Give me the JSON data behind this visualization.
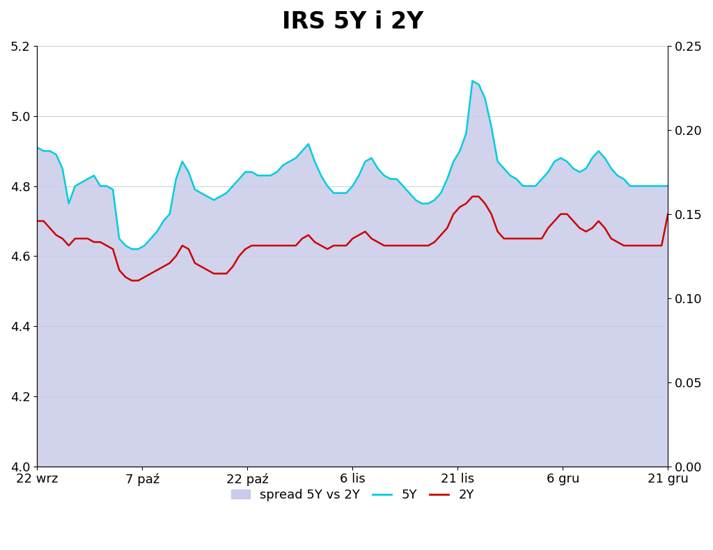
{
  "title": "IRS 5Y i 2Y",
  "title_fontsize": 24,
  "title_fontweight": "bold",
  "x_labels": [
    "22 wrz",
    "7 paź",
    "22 paź",
    "6 lis",
    "21 lis",
    "6 gru",
    "21 gru"
  ],
  "ylim_left": [
    4.0,
    5.2
  ],
  "ylim_right": [
    0.0,
    0.25
  ],
  "yticks_left": [
    4.0,
    4.2,
    4.4,
    4.6,
    4.8,
    5.0,
    5.2
  ],
  "yticks_right": [
    0.0,
    0.05,
    0.1,
    0.15,
    0.2,
    0.25
  ],
  "line5Y": [
    4.91,
    4.9,
    4.9,
    4.89,
    4.85,
    4.75,
    4.8,
    4.81,
    4.82,
    4.83,
    4.8,
    4.8,
    4.79,
    4.65,
    4.63,
    4.62,
    4.62,
    4.63,
    4.65,
    4.67,
    4.7,
    4.72,
    4.82,
    4.87,
    4.84,
    4.79,
    4.78,
    4.77,
    4.76,
    4.77,
    4.78,
    4.8,
    4.82,
    4.84,
    4.84,
    4.83,
    4.83,
    4.83,
    4.84,
    4.86,
    4.87,
    4.88,
    4.9,
    4.92,
    4.87,
    4.83,
    4.8,
    4.78,
    4.78,
    4.78,
    4.8,
    4.83,
    4.87,
    4.88,
    4.85,
    4.83,
    4.82,
    4.82,
    4.8,
    4.78,
    4.76,
    4.75,
    4.75,
    4.76,
    4.78,
    4.82,
    4.87,
    4.9,
    4.95,
    5.1,
    5.09,
    5.05,
    4.97,
    4.87,
    4.85,
    4.83,
    4.82,
    4.8,
    4.8,
    4.8,
    4.82,
    4.84,
    4.87,
    4.88,
    4.87,
    4.85,
    4.84,
    4.85,
    4.88,
    4.9,
    4.88,
    4.85,
    4.83,
    4.82,
    4.8,
    4.8,
    4.8,
    4.8,
    4.8,
    4.8,
    4.8
  ],
  "line2Y": [
    4.7,
    4.7,
    4.68,
    4.66,
    4.65,
    4.63,
    4.65,
    4.65,
    4.65,
    4.64,
    4.64,
    4.63,
    4.62,
    4.56,
    4.54,
    4.53,
    4.53,
    4.54,
    4.55,
    4.56,
    4.57,
    4.58,
    4.6,
    4.63,
    4.62,
    4.58,
    4.57,
    4.56,
    4.55,
    4.55,
    4.55,
    4.57,
    4.6,
    4.62,
    4.63,
    4.63,
    4.63,
    4.63,
    4.63,
    4.63,
    4.63,
    4.63,
    4.65,
    4.66,
    4.64,
    4.63,
    4.62,
    4.63,
    4.63,
    4.63,
    4.65,
    4.66,
    4.67,
    4.65,
    4.64,
    4.63,
    4.63,
    4.63,
    4.63,
    4.63,
    4.63,
    4.63,
    4.63,
    4.64,
    4.66,
    4.68,
    4.72,
    4.74,
    4.75,
    4.77,
    4.77,
    4.75,
    4.72,
    4.67,
    4.65,
    4.65,
    4.65,
    4.65,
    4.65,
    4.65,
    4.65,
    4.68,
    4.7,
    4.72,
    4.72,
    4.7,
    4.68,
    4.67,
    4.68,
    4.7,
    4.68,
    4.65,
    4.64,
    4.63,
    4.63,
    4.63,
    4.63,
    4.63,
    4.63,
    4.63,
    4.72
  ],
  "color_5Y": "#00CCDD",
  "color_2Y": "#CC0000",
  "color_spread_fill": "#C8CCE8",
  "background_color": "#FFFFFF",
  "grid_color": "#CCCCCC",
  "legend_spread": "spread 5Y vs 2Y",
  "legend_5Y": "5Y",
  "legend_2Y": "2Y",
  "n_points": 101
}
